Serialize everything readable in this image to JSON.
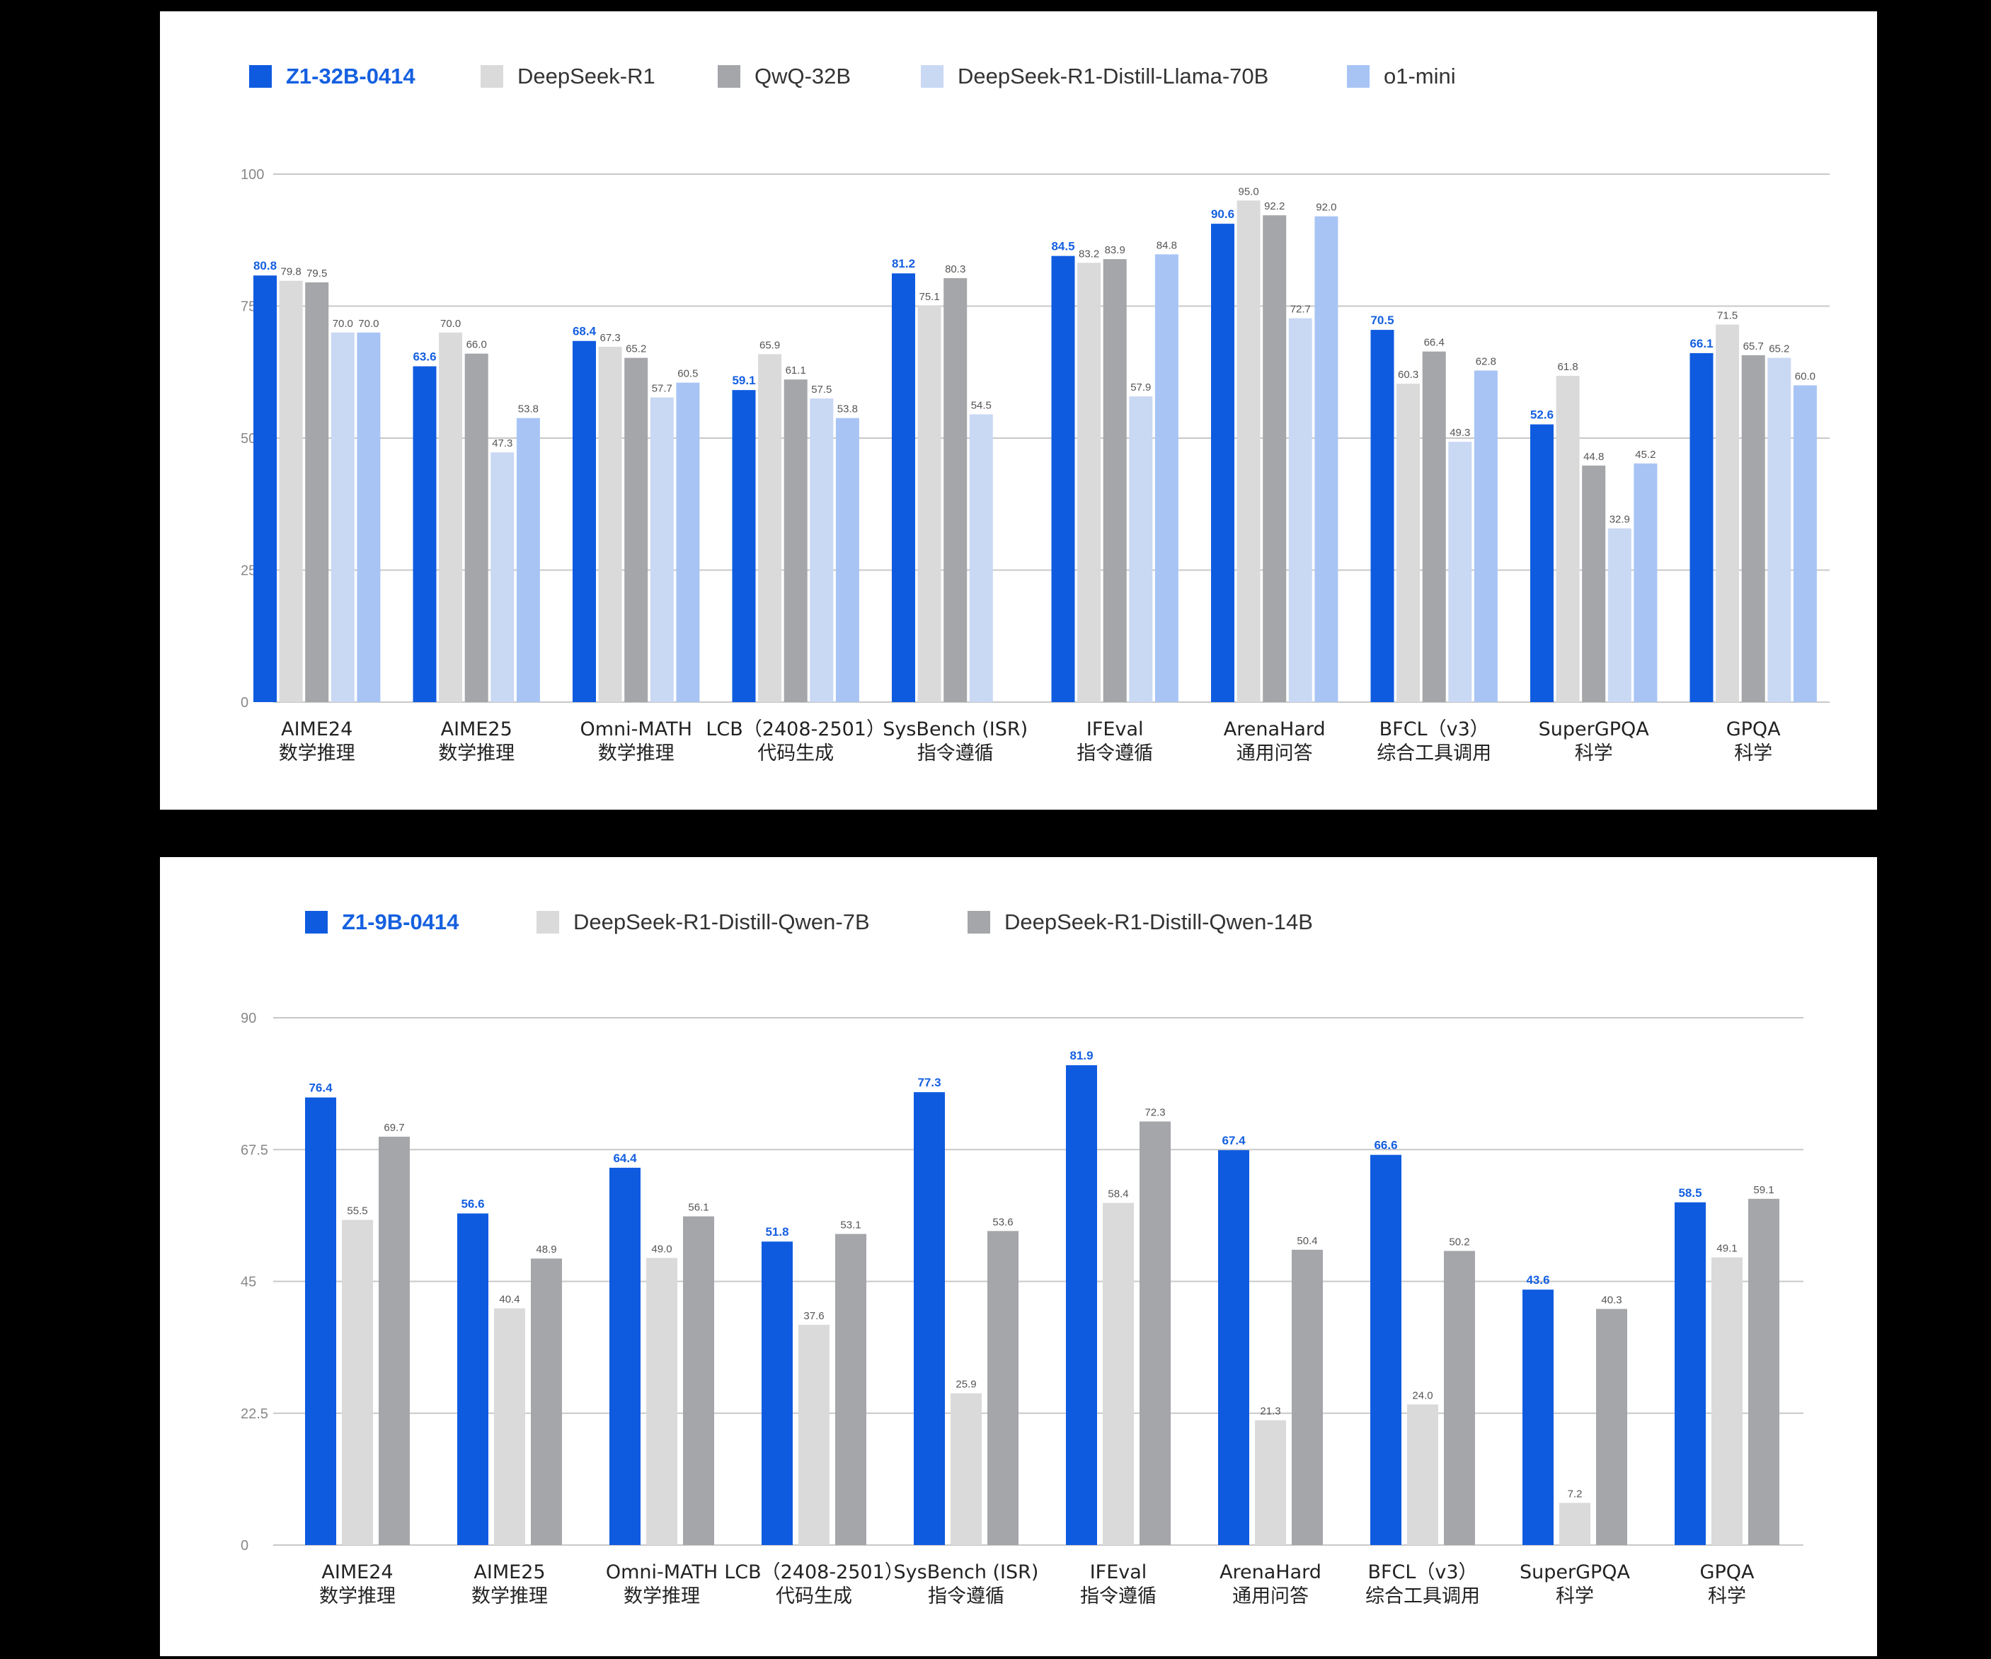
{
  "colors": {
    "page_background": "#000000",
    "panel_background": "#ffffff",
    "gridline": "#c8c8c8",
    "primary_label": "#1560e0"
  },
  "chart_data": [
    {
      "type": "bar",
      "categories": [
        [
          "AIME24",
          "数学推理"
        ],
        [
          "AIME25",
          "数学推理"
        ],
        [
          "Omni-MATH",
          "数学推理"
        ],
        [
          "LCB（2408-2501）",
          "代码生成"
        ],
        [
          "SysBench (ISR)",
          "指令遵循"
        ],
        [
          "IFEval",
          "指令遵循"
        ],
        [
          "ArenaHard",
          "通用问答"
        ],
        [
          "BFCL（v3）",
          "综合工具调用"
        ],
        [
          "SuperGPQA",
          "科学"
        ],
        [
          "GPQA",
          "科学"
        ]
      ],
      "series": [
        {
          "name": "Z1-32B-0414",
          "color": "#0f5be0",
          "values": [
            80.8,
            63.6,
            68.4,
            59.1,
            81.2,
            84.5,
            90.6,
            70.5,
            52.6,
            66.1
          ]
        },
        {
          "name": "DeepSeek-R1",
          "color": "#dadada",
          "values": [
            79.8,
            70.0,
            67.3,
            65.9,
            75.1,
            83.2,
            95.0,
            60.3,
            61.8,
            71.5
          ]
        },
        {
          "name": "QwQ-32B",
          "color": "#a4a6a9",
          "values": [
            79.5,
            66.0,
            65.2,
            61.1,
            80.3,
            83.9,
            92.2,
            66.4,
            44.8,
            65.7
          ]
        },
        {
          "name": "DeepSeek-R1-Distill-Llama-70B",
          "color": "#c9d8f3",
          "values": [
            70.0,
            47.3,
            57.7,
            57.5,
            54.5,
            57.9,
            72.7,
            49.3,
            32.9,
            65.2
          ]
        },
        {
          "name": "o1-mini",
          "color": "#a8c4f5",
          "values": [
            70.0,
            53.8,
            60.5,
            53.8,
            null,
            84.8,
            92.0,
            62.8,
            45.2,
            60.0
          ]
        }
      ],
      "y_ticks": [
        0,
        25,
        50,
        75,
        100
      ],
      "ylim": [
        0,
        100
      ],
      "grid": true,
      "legend_position": "top-left"
    },
    {
      "type": "bar",
      "categories": [
        [
          "AIME24",
          "数学推理"
        ],
        [
          "AIME25",
          "数学推理"
        ],
        [
          "Omni-MATH",
          "数学推理"
        ],
        [
          "LCB（2408-2501）",
          "代码生成"
        ],
        [
          "SysBench (ISR)",
          "指令遵循"
        ],
        [
          "IFEval",
          "指令遵循"
        ],
        [
          "ArenaHard",
          "通用问答"
        ],
        [
          "BFCL（v3）",
          "综合工具调用"
        ],
        [
          "SuperGPQA",
          "科学"
        ],
        [
          "GPQA",
          "科学"
        ]
      ],
      "series": [
        {
          "name": "Z1-9B-0414",
          "color": "#0f5be0",
          "values": [
            76.4,
            56.6,
            64.4,
            51.8,
            77.3,
            81.9,
            67.4,
            66.6,
            43.6,
            58.5
          ]
        },
        {
          "name": "DeepSeek-R1-Distill-Qwen-7B",
          "color": "#dadada",
          "values": [
            55.5,
            40.4,
            49.0,
            37.6,
            25.9,
            58.4,
            21.3,
            24.0,
            7.2,
            49.1
          ]
        },
        {
          "name": "DeepSeek-R1-Distill-Qwen-14B",
          "color": "#a4a6a9",
          "values": [
            69.7,
            48.9,
            56.1,
            53.1,
            53.6,
            72.3,
            50.4,
            50.2,
            40.3,
            59.1
          ]
        }
      ],
      "y_ticks": [
        0,
        22.5,
        45,
        67.5,
        90
      ],
      "ylim": [
        0,
        90
      ],
      "grid": true,
      "legend_position": "top-left"
    }
  ]
}
